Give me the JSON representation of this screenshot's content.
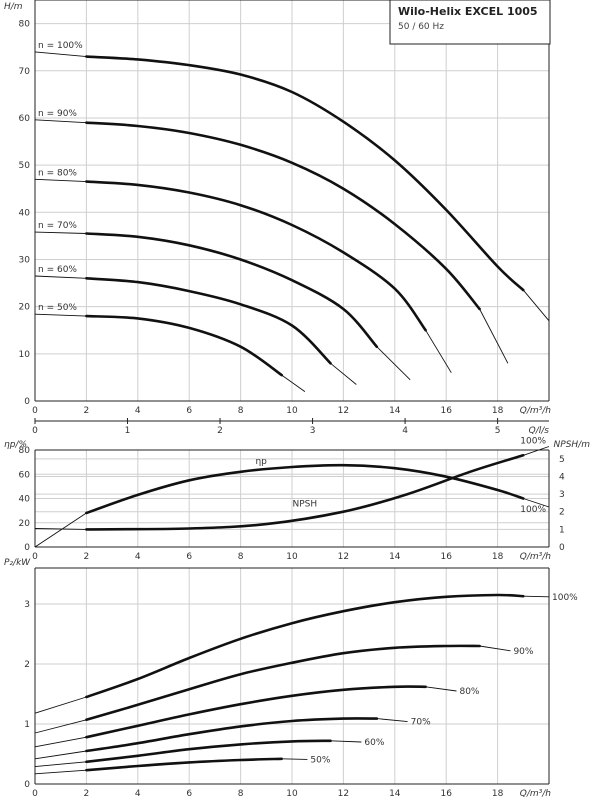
{
  "title_box": {
    "title": "Wilo-Helix EXCEL 1005",
    "subtitle": "50 / 60 Hz"
  },
  "chart_data": [
    {
      "type": "line",
      "name": "head",
      "ylabel": "H/m",
      "xlabel": "Q/m³/h",
      "secondary_x": {
        "label": "Q/l/s",
        "ticks": [
          0,
          1,
          2,
          3,
          4,
          5
        ]
      },
      "xlim": [
        0,
        20
      ],
      "ylim": [
        0,
        85
      ],
      "xticks": [
        0,
        2,
        4,
        6,
        8,
        10,
        12,
        14,
        16,
        18
      ],
      "yticks": [
        0,
        10,
        20,
        30,
        40,
        50,
        60,
        70,
        80
      ],
      "grid": true,
      "series": [
        {
          "name": "n = 100%",
          "extension": [
            [
              0,
              74.0
            ],
            [
              2,
              73.0
            ]
          ],
          "points": [
            [
              2,
              73.0
            ],
            [
              4,
              72.4
            ],
            [
              6,
              71.2
            ],
            [
              8,
              69.2
            ],
            [
              10,
              65.5
            ],
            [
              12,
              59.2
            ],
            [
              14,
              51.0
            ],
            [
              16,
              40.5
            ],
            [
              18,
              28.5
            ],
            [
              19.0,
              23.5
            ]
          ],
          "tail": [
            [
              19.0,
              23.5
            ],
            [
              20.0,
              17.0
            ]
          ]
        },
        {
          "name": "n = 90%",
          "extension": [
            [
              0,
              59.6
            ],
            [
              2,
              59.0
            ]
          ],
          "points": [
            [
              2,
              59.0
            ],
            [
              4,
              58.3
            ],
            [
              6,
              56.8
            ],
            [
              8,
              54.3
            ],
            [
              10,
              50.5
            ],
            [
              12,
              45.0
            ],
            [
              14,
              37.5
            ],
            [
              16,
              28.0
            ],
            [
              17.3,
              19.5
            ]
          ],
          "tail": [
            [
              17.3,
              19.5
            ],
            [
              18.4,
              8.0
            ]
          ]
        },
        {
          "name": "n = 80%",
          "extension": [
            [
              0,
              47.0
            ],
            [
              2,
              46.5
            ]
          ],
          "points": [
            [
              2,
              46.5
            ],
            [
              4,
              45.8
            ],
            [
              6,
              44.2
            ],
            [
              8,
              41.5
            ],
            [
              10,
              37.3
            ],
            [
              12,
              31.5
            ],
            [
              14,
              23.8
            ],
            [
              15.2,
              15.0
            ]
          ],
          "tail": [
            [
              15.2,
              15.0
            ],
            [
              16.2,
              6.0
            ]
          ]
        },
        {
          "name": "n = 70%",
          "extension": [
            [
              0,
              35.8
            ],
            [
              2,
              35.5
            ]
          ],
          "points": [
            [
              2,
              35.5
            ],
            [
              4,
              34.8
            ],
            [
              6,
              33.0
            ],
            [
              8,
              30.0
            ],
            [
              10,
              25.6
            ],
            [
              12,
              19.5
            ],
            [
              13.3,
              11.5
            ]
          ],
          "tail": [
            [
              13.3,
              11.5
            ],
            [
              14.6,
              4.5
            ]
          ]
        },
        {
          "name": "n = 60%",
          "extension": [
            [
              0,
              26.5
            ],
            [
              2,
              26.0
            ]
          ],
          "points": [
            [
              2,
              26.0
            ],
            [
              4,
              25.2
            ],
            [
              6,
              23.3
            ],
            [
              8,
              20.5
            ],
            [
              10,
              16.0
            ],
            [
              11.5,
              8.0
            ]
          ],
          "tail": [
            [
              11.5,
              8.0
            ],
            [
              12.5,
              3.5
            ]
          ]
        },
        {
          "name": "n = 50%",
          "extension": [
            [
              0,
              18.4
            ],
            [
              2,
              18.0
            ]
          ],
          "points": [
            [
              2,
              18.0
            ],
            [
              4,
              17.5
            ],
            [
              6,
              15.5
            ],
            [
              8,
              11.5
            ],
            [
              9.6,
              5.5
            ]
          ],
          "tail": [
            [
              9.6,
              5.5
            ],
            [
              10.5,
              2.0
            ]
          ]
        }
      ]
    },
    {
      "type": "line",
      "name": "efficiency-npsh",
      "ylabel": "ηp/%",
      "y2label": "NPSH/m",
      "xlabel": "Q/m³/h",
      "xlim": [
        0,
        20
      ],
      "ylim": [
        0,
        80
      ],
      "y2lim": [
        0,
        5.5
      ],
      "xticks": [
        0,
        2,
        4,
        6,
        8,
        10,
        12,
        14,
        16,
        18
      ],
      "yticks": [
        0,
        20,
        40,
        60,
        80
      ],
      "y2ticks": [
        0,
        1,
        2,
        3,
        4,
        5
      ],
      "grid": true,
      "series": [
        {
          "name": "ηp",
          "axis": "left",
          "end_label": "100%",
          "extension": [
            [
              0,
              0
            ],
            [
              2,
              28
            ]
          ],
          "points": [
            [
              2,
              28
            ],
            [
              4,
              43
            ],
            [
              6,
              55
            ],
            [
              8,
              62
            ],
            [
              10,
              66
            ],
            [
              12,
              67.5
            ],
            [
              14,
              65
            ],
            [
              16,
              58
            ],
            [
              18,
              47
            ],
            [
              19.0,
              40
            ]
          ],
          "tail": [
            [
              19.0,
              40
            ],
            [
              20.0,
              33
            ]
          ]
        },
        {
          "name": "NPSH",
          "axis": "right",
          "end_label": "100%",
          "extension": [
            [
              0,
              1.05
            ],
            [
              2,
              1.0
            ]
          ],
          "points": [
            [
              2,
              1.0
            ],
            [
              6,
              1.05
            ],
            [
              9,
              1.3
            ],
            [
              12,
              2.0
            ],
            [
              14.5,
              3.0
            ],
            [
              17,
              4.3
            ],
            [
              19.0,
              5.2
            ]
          ],
          "tail": [
            [
              19.0,
              5.2
            ],
            [
              20.0,
              5.7
            ]
          ]
        }
      ]
    },
    {
      "type": "line",
      "name": "power",
      "ylabel": "P₂/kW",
      "xlabel": "Q/m³/h",
      "xlim": [
        0,
        20
      ],
      "ylim": [
        0,
        3.6
      ],
      "xticks": [
        0,
        2,
        4,
        6,
        8,
        10,
        12,
        14,
        16,
        18
      ],
      "yticks": [
        0,
        1,
        2,
        3
      ],
      "grid": true,
      "series": [
        {
          "name": "100%",
          "extension": [
            [
              0,
              1.18
            ],
            [
              2,
              1.45
            ]
          ],
          "points": [
            [
              2,
              1.45
            ],
            [
              4,
              1.75
            ],
            [
              6,
              2.1
            ],
            [
              8,
              2.42
            ],
            [
              10,
              2.68
            ],
            [
              12,
              2.88
            ],
            [
              14,
              3.03
            ],
            [
              16,
              3.12
            ],
            [
              18,
              3.15
            ],
            [
              19.0,
              3.13
            ]
          ],
          "tail": [
            [
              19.0,
              3.13
            ],
            [
              20.0,
              3.12
            ]
          ]
        },
        {
          "name": "90%",
          "extension": [
            [
              0,
              0.85
            ],
            [
              2,
              1.07
            ]
          ],
          "points": [
            [
              2,
              1.07
            ],
            [
              4,
              1.32
            ],
            [
              6,
              1.58
            ],
            [
              8,
              1.83
            ],
            [
              10,
              2.02
            ],
            [
              12,
              2.18
            ],
            [
              14,
              2.27
            ],
            [
              16,
              2.3
            ],
            [
              17.3,
              2.3
            ]
          ],
          "tail": [
            [
              17.3,
              2.3
            ],
            [
              18.5,
              2.22
            ]
          ]
        },
        {
          "name": "80%",
          "extension": [
            [
              0,
              0.62
            ],
            [
              2,
              0.78
            ]
          ],
          "points": [
            [
              2,
              0.78
            ],
            [
              4,
              0.97
            ],
            [
              6,
              1.16
            ],
            [
              8,
              1.33
            ],
            [
              10,
              1.47
            ],
            [
              12,
              1.57
            ],
            [
              14,
              1.62
            ],
            [
              15.2,
              1.62
            ]
          ],
          "tail": [
            [
              15.2,
              1.62
            ],
            [
              16.4,
              1.55
            ]
          ]
        },
        {
          "name": "70%",
          "extension": [
            [
              0,
              0.42
            ],
            [
              2,
              0.55
            ]
          ],
          "points": [
            [
              2,
              0.55
            ],
            [
              4,
              0.68
            ],
            [
              6,
              0.83
            ],
            [
              8,
              0.96
            ],
            [
              10,
              1.05
            ],
            [
              12,
              1.09
            ],
            [
              13.3,
              1.09
            ]
          ],
          "tail": [
            [
              13.3,
              1.09
            ],
            [
              14.5,
              1.04
            ]
          ]
        },
        {
          "name": "60%",
          "extension": [
            [
              0,
              0.29
            ],
            [
              2,
              0.37
            ]
          ],
          "points": [
            [
              2,
              0.37
            ],
            [
              4,
              0.47
            ],
            [
              6,
              0.58
            ],
            [
              8,
              0.66
            ],
            [
              10,
              0.71
            ],
            [
              11.5,
              0.72
            ]
          ],
          "tail": [
            [
              11.5,
              0.72
            ],
            [
              12.7,
              0.7
            ]
          ]
        },
        {
          "name": "50%",
          "extension": [
            [
              0,
              0.17
            ],
            [
              2,
              0.23
            ]
          ],
          "points": [
            [
              2,
              0.23
            ],
            [
              4,
              0.3
            ],
            [
              6,
              0.36
            ],
            [
              8,
              0.4
            ],
            [
              9.6,
              0.42
            ]
          ],
          "tail": [
            [
              9.6,
              0.42
            ],
            [
              10.6,
              0.41
            ]
          ]
        }
      ]
    }
  ]
}
